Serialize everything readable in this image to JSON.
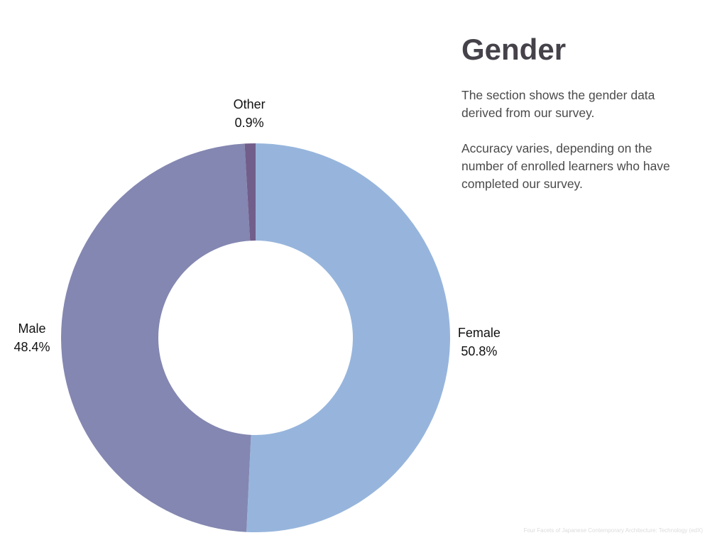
{
  "chart_data": {
    "type": "donut",
    "title": "Gender",
    "categories": [
      "Female",
      "Male",
      "Other"
    ],
    "values": [
      50.8,
      48.4,
      0.9
    ],
    "value_labels": [
      "50.8%",
      "48.4%",
      "0.9%"
    ],
    "colors": [
      "#97b5dc",
      "#8387b1",
      "#725e8a"
    ]
  },
  "paragraphs": [
    "The section shows the gender data derived from our survey.",
    "Accuracy varies, depending on the number of enrolled learners who have completed our survey."
  ],
  "footer": "Four Facets of Japanese Contemporary Architecture: Technology (edX)"
}
